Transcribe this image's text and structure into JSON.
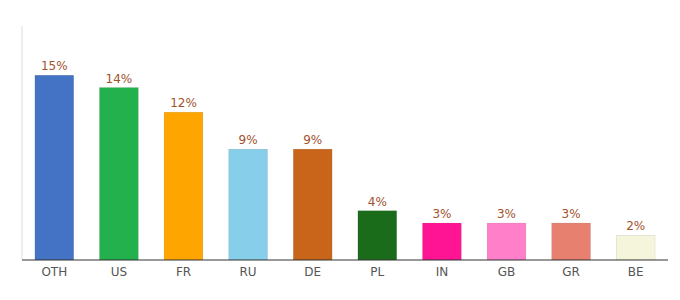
{
  "chart_data": {
    "type": "bar",
    "categories": [
      "OTH",
      "US",
      "FR",
      "RU",
      "DE",
      "PL",
      "IN",
      "GB",
      "GR",
      "BE"
    ],
    "values": [
      15,
      14,
      12,
      9,
      9,
      4,
      3,
      3,
      3,
      2
    ],
    "value_labels": [
      "15%",
      "14%",
      "12%",
      "9%",
      "9%",
      "4%",
      "3%",
      "3%",
      "3%",
      "2%"
    ],
    "colors": [
      "#4472c4",
      "#22b14c",
      "#ffa500",
      "#87ceeb",
      "#c8651b",
      "#1a6b1a",
      "#ff1493",
      "#ff80c8",
      "#e88070",
      "#f5f5dc"
    ],
    "ylim": [
      0,
      19
    ],
    "grid": false,
    "data_labels": true,
    "tick_labels": "x"
  }
}
